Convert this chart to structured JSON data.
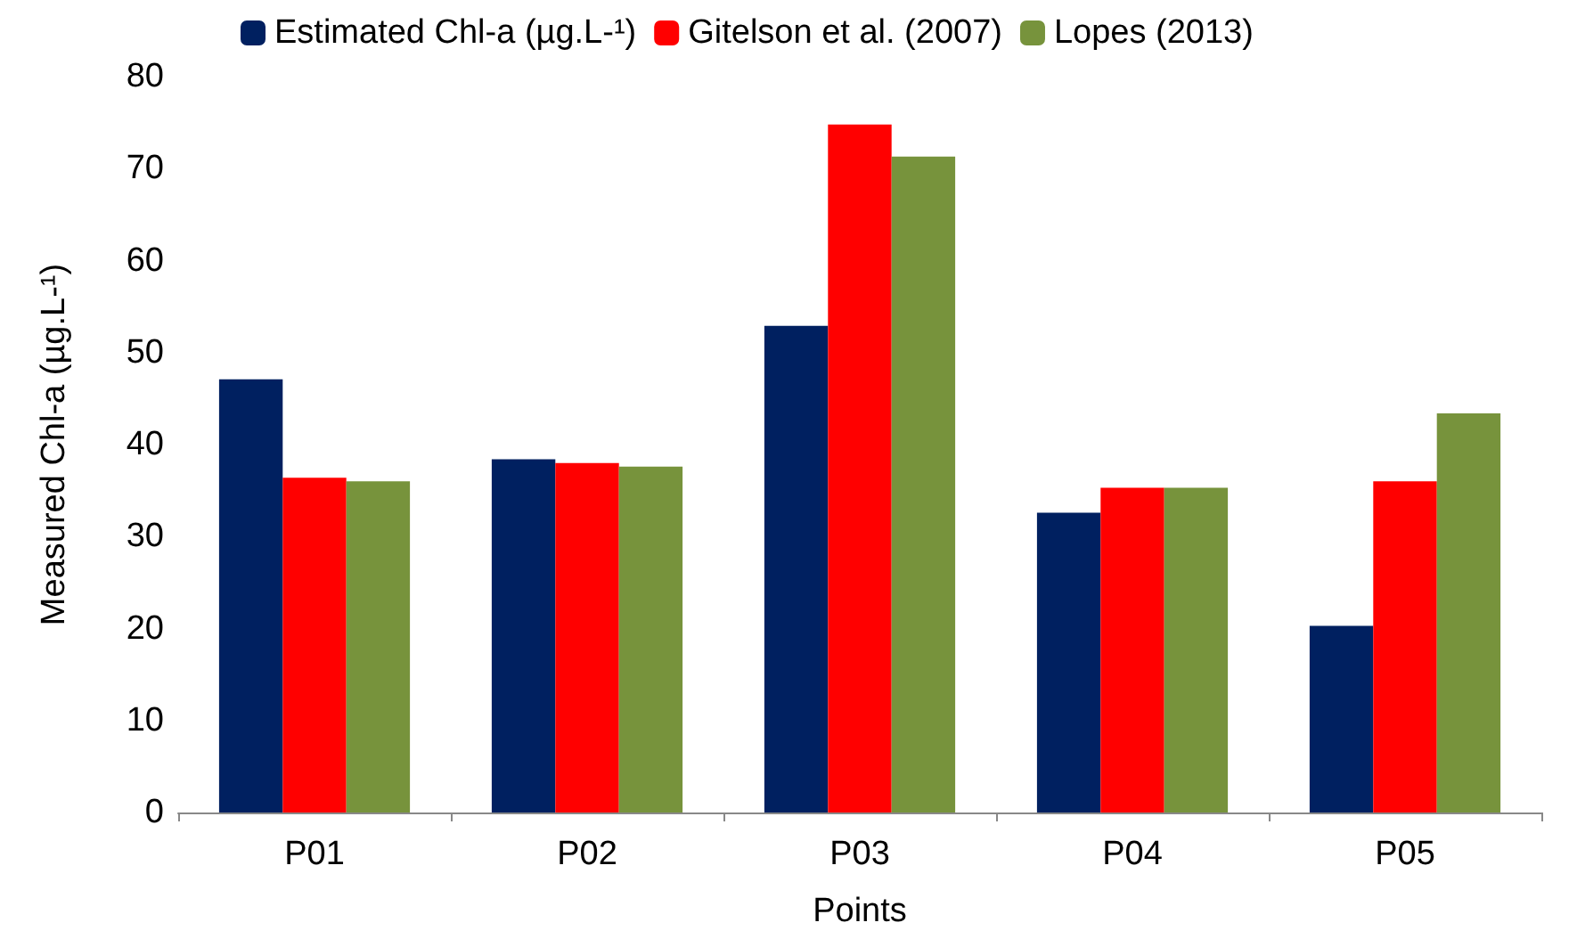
{
  "chart_data": {
    "type": "bar",
    "xlabel": "Points",
    "ylabel": "Measured Chl-a (µg.L-¹)",
    "categories": [
      "P01",
      "P02",
      "P03",
      "P04",
      "P05"
    ],
    "series": [
      {
        "name": "Estimated Chl-a (µg.L-¹)",
        "color": "#002060",
        "values": [
          47.1,
          38.4,
          52.9,
          32.6,
          20.3
        ]
      },
      {
        "name": "Gitelson et al. (2007)",
        "color": "#ff0000",
        "values": [
          36.4,
          38.0,
          74.8,
          35.3,
          36.0
        ]
      },
      {
        "name": "Lopes (2013)",
        "color": "#77933c",
        "values": [
          36.0,
          37.6,
          71.3,
          35.3,
          43.4
        ]
      }
    ],
    "ylim": [
      0,
      80
    ],
    "yticks": [
      0,
      10,
      20,
      30,
      40,
      50,
      60,
      70,
      80
    ],
    "grid": false,
    "legend": "top"
  }
}
